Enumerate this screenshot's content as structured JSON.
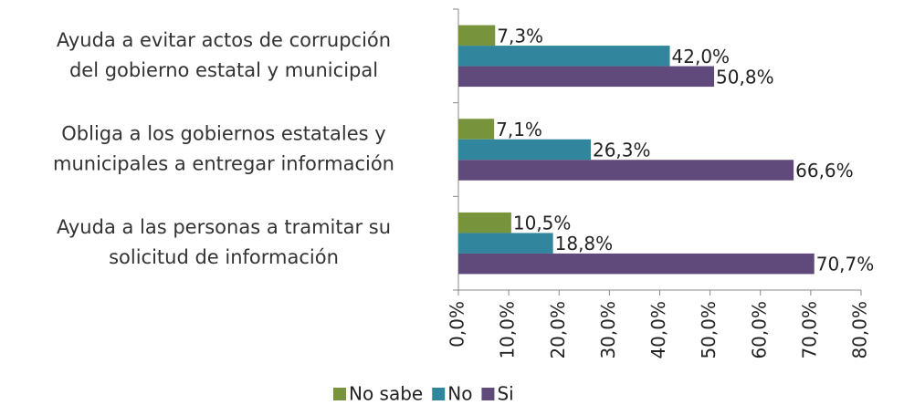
{
  "chart_data": {
    "type": "bar",
    "orientation": "horizontal",
    "categories": [
      [
        "Ayuda a evitar actos de corrupción",
        "del gobierno estatal y municipal"
      ],
      [
        "Obliga a los gobiernos estatales y",
        "municipales a entregar información"
      ],
      [
        "Ayuda a las personas a tramitar su",
        "solicitud de información"
      ]
    ],
    "series": [
      {
        "name": "No sabe",
        "color": "#77933c",
        "values": [
          7.3,
          7.1,
          10.5
        ],
        "value_labels": [
          "7,3%",
          "7,1%",
          "10,5%"
        ]
      },
      {
        "name": "No",
        "color": "#31859c",
        "values": [
          42.0,
          26.3,
          18.8
        ],
        "value_labels": [
          "42,0%",
          "26,3%",
          "18,8%"
        ]
      },
      {
        "name": "Si",
        "color": "#604a7b",
        "values": [
          50.8,
          66.6,
          70.7
        ],
        "value_labels": [
          "50,8%",
          "66,6%",
          "70,7%"
        ]
      }
    ],
    "xlim": [
      0,
      80
    ],
    "xticks": [
      {
        "value": 0,
        "label": "0,0%"
      },
      {
        "value": 10,
        "label": "10,0%"
      },
      {
        "value": 20,
        "label": "20,0%"
      },
      {
        "value": 30,
        "label": "30,0%"
      },
      {
        "value": 40,
        "label": "40,0%"
      },
      {
        "value": 50,
        "label": "50,0%"
      },
      {
        "value": 60,
        "label": "60,0%"
      },
      {
        "value": 70,
        "label": "70,0%"
      },
      {
        "value": 80,
        "label": "80,0%"
      }
    ],
    "legend": "bottom"
  }
}
